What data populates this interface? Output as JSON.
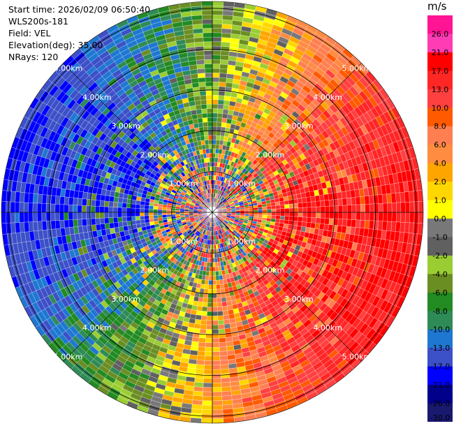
{
  "info": {
    "start_time": "Start time: 2026/02/09 06:50:40",
    "instrument": "WLS200s-181",
    "field": "Field: VEL",
    "elevation": "Elevation(deg): 35.00",
    "nrays": "NRays: 120"
  },
  "colorbar": {
    "unit": "m/s",
    "ticks": [
      "26.0",
      "21.0",
      "17.0",
      "13.0",
      "10.0",
      "8.0",
      "6.0",
      "4.0",
      "2.0",
      "1.0",
      "0.0",
      "-1.0",
      "-2.0",
      "-4.0",
      "-6.0",
      "-8.0",
      "-10.0",
      "-13.0",
      "-17.0",
      "-21.0",
      "-26.0",
      "-30.0"
    ],
    "colors": [
      "#ff1493",
      "#ff3cb4",
      "#ff0000",
      "#ff2626",
      "#ff4040",
      "#ff5a00",
      "#ff7f50",
      "#ff8c40",
      "#ffa500",
      "#ffd700",
      "#ffff00",
      "#787878",
      "#606060",
      "#9acd32",
      "#6b8e23",
      "#228b22",
      "#2e8b57",
      "#1e78d2",
      "#3c50c8",
      "#0000ff",
      "#00008b",
      "#191970"
    ]
  },
  "chart_data": {
    "type": "ppi",
    "field": "VEL",
    "nrays": 120,
    "elevation_deg": 35.0,
    "range_ring_labels": [
      "1.00km",
      "2.00km",
      "3.00km",
      "4.00km",
      "5.00km"
    ],
    "range_rings_km": [
      1,
      2,
      3,
      4,
      5
    ],
    "max_range_km": 5.0,
    "value_range": [
      -30,
      26
    ],
    "units": "m/s"
  }
}
